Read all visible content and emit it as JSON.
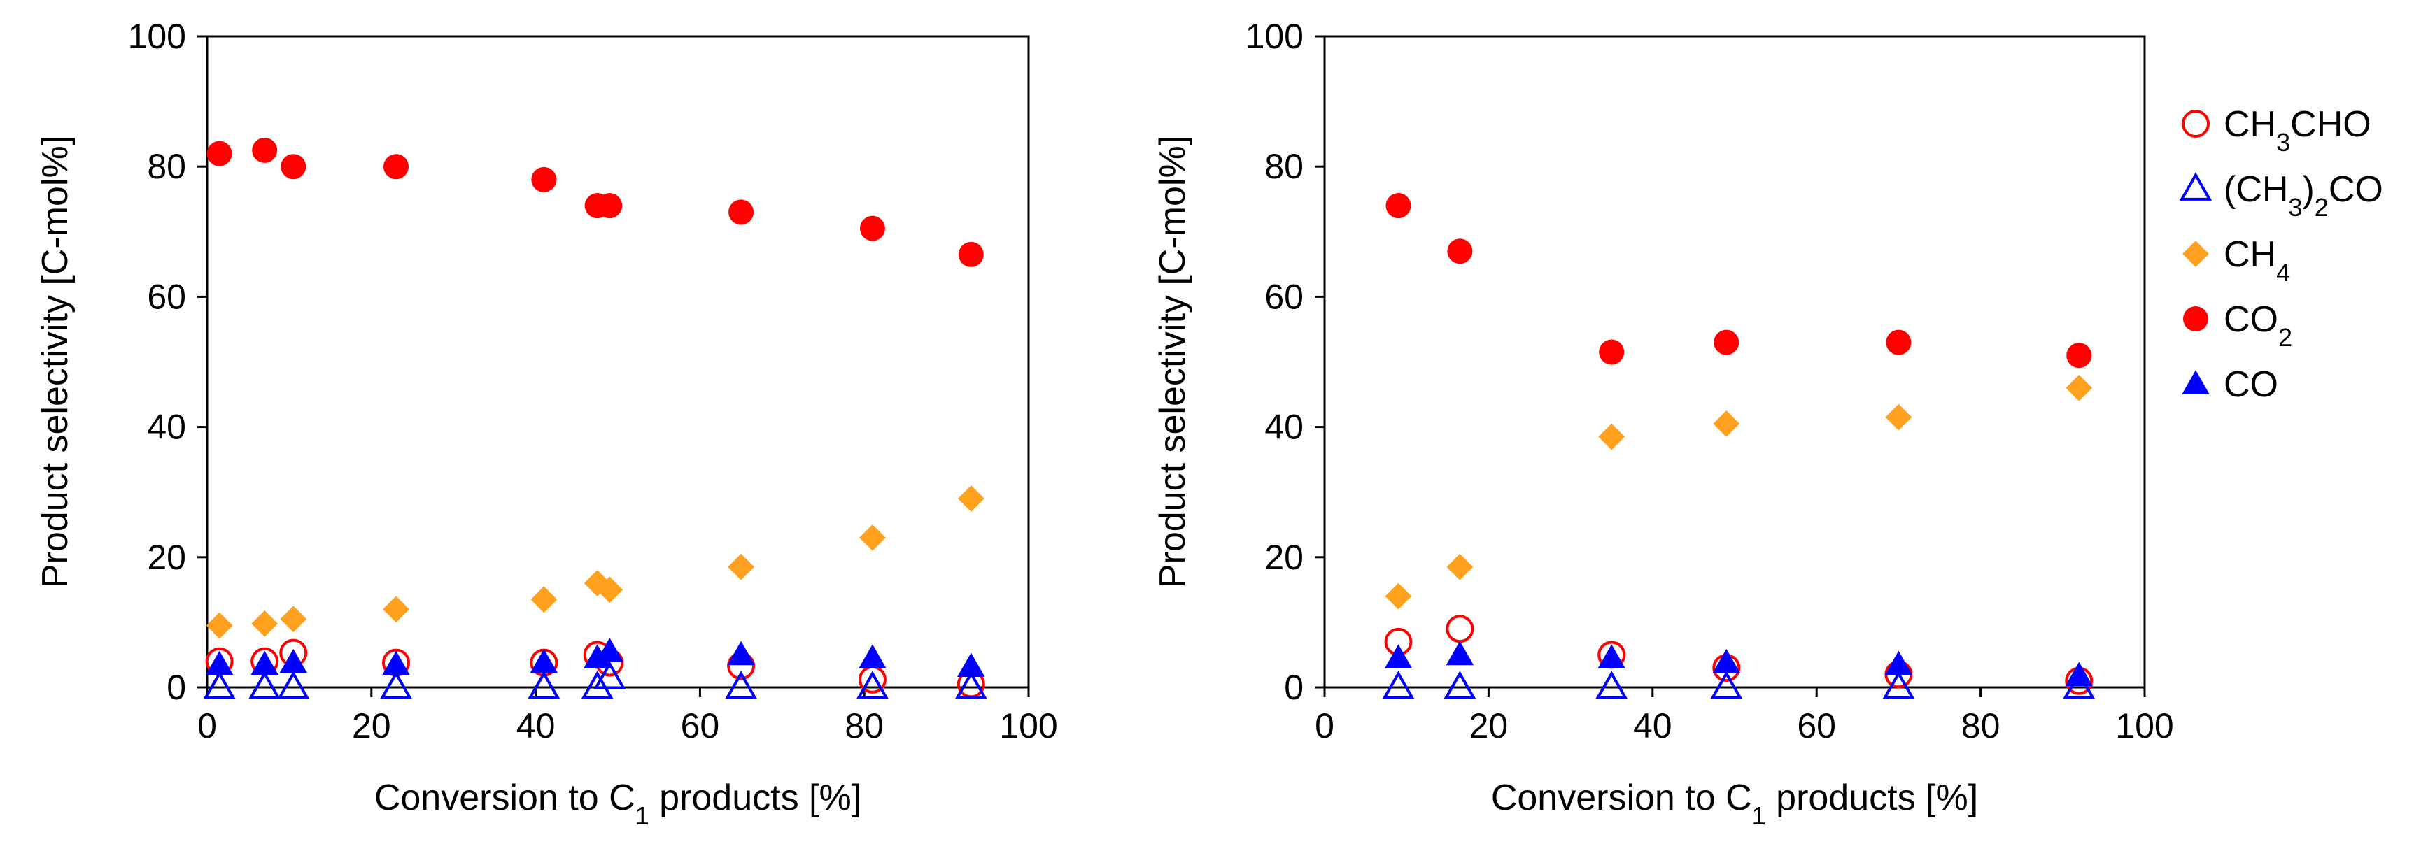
{
  "colors": {
    "red": "#ff0000",
    "blue": "#0000ff",
    "orange": "#ffa01e",
    "axis": "#000000"
  },
  "legend": [
    {
      "key": "CH3CHO",
      "parts": [
        {
          "t": "CH"
        },
        {
          "t": "3",
          "sub": true
        },
        {
          "t": "CHO"
        }
      ],
      "marker": "circle-open",
      "color": "red"
    },
    {
      "key": "(CH3)2CO",
      "parts": [
        {
          "t": "(CH"
        },
        {
          "t": "3",
          "sub": true
        },
        {
          "t": ")"
        },
        {
          "t": "2",
          "sub": true
        },
        {
          "t": "CO"
        }
      ],
      "marker": "triangle-open",
      "color": "blue"
    },
    {
      "key": "CH4",
      "parts": [
        {
          "t": "CH"
        },
        {
          "t": "4",
          "sub": true
        }
      ],
      "marker": "diamond",
      "color": "orange"
    },
    {
      "key": "CO2",
      "parts": [
        {
          "t": "CO"
        },
        {
          "t": "2",
          "sub": true
        }
      ],
      "marker": "circle",
      "color": "red"
    },
    {
      "key": "CO",
      "parts": [
        {
          "t": "CO"
        }
      ],
      "marker": "triangle",
      "color": "blue"
    }
  ],
  "chart_data": [
    {
      "type": "scatter",
      "title": "",
      "xlabel_parts": [
        {
          "t": "Conversion to C"
        },
        {
          "t": "1",
          "sub": true
        },
        {
          "t": " products [%]"
        }
      ],
      "ylabel": "Product selectivity [C-mol%]",
      "xlim": [
        0,
        100
      ],
      "ylim": [
        0,
        100
      ],
      "xticks": [
        0,
        20,
        40,
        60,
        80,
        100
      ],
      "yticks": [
        0,
        20,
        40,
        60,
        80,
        100
      ],
      "grid": false,
      "series": [
        {
          "name": "CH3CHO",
          "x": [
            1.5,
            7,
            10.5,
            23,
            41,
            47.5,
            49,
            65,
            81,
            93
          ],
          "y": [
            4,
            4,
            5.3,
            3.8,
            3.8,
            5,
            3.8,
            3.3,
            1.2,
            0.5
          ]
        },
        {
          "name": "(CH3)2CO",
          "x": [
            1.5,
            7,
            10.5,
            23,
            41,
            47.5,
            49,
            65,
            81,
            93
          ],
          "y": [
            0,
            0,
            0,
            0,
            0,
            0,
            1.5,
            0,
            0,
            0
          ]
        },
        {
          "name": "CH4",
          "x": [
            1.5,
            7,
            10.5,
            23,
            41,
            47.5,
            49,
            65,
            81,
            93
          ],
          "y": [
            9.5,
            9.8,
            10.5,
            12,
            13.5,
            16,
            15,
            18.5,
            23,
            29
          ]
        },
        {
          "name": "CO2",
          "x": [
            1.5,
            7,
            10.5,
            23,
            41,
            47.5,
            49,
            65,
            81,
            93
          ],
          "y": [
            82,
            82.5,
            80,
            80,
            78,
            74,
            74,
            73,
            70.5,
            66.5
          ]
        },
        {
          "name": "CO",
          "x": [
            1.5,
            7,
            10.5,
            23,
            41,
            47.5,
            49,
            65,
            81,
            93
          ],
          "y": [
            3.5,
            3.5,
            3.8,
            3.5,
            3.8,
            4.5,
            5.5,
            5,
            4.5,
            3.2
          ]
        }
      ]
    },
    {
      "type": "scatter",
      "title": "",
      "xlabel_parts": [
        {
          "t": "Conversion to C"
        },
        {
          "t": "1",
          "sub": true
        },
        {
          "t": " products [%]"
        }
      ],
      "ylabel": "Product selectivity [C-mol%]",
      "xlim": [
        0,
        100
      ],
      "ylim": [
        0,
        100
      ],
      "xticks": [
        0,
        20,
        40,
        60,
        80,
        100
      ],
      "yticks": [
        0,
        20,
        40,
        60,
        80,
        100
      ],
      "grid": false,
      "series": [
        {
          "name": "CH3CHO",
          "x": [
            9,
            16.5,
            35,
            49,
            70,
            92
          ],
          "y": [
            7,
            9,
            5,
            3,
            2,
            1
          ]
        },
        {
          "name": "(CH3)2CO",
          "x": [
            9,
            16.5,
            35,
            49,
            70,
            92
          ],
          "y": [
            0,
            0,
            0,
            0,
            0,
            0
          ]
        },
        {
          "name": "CH4",
          "x": [
            9,
            16.5,
            35,
            49,
            70,
            92
          ],
          "y": [
            14,
            18.5,
            38.5,
            40.5,
            41.5,
            46
          ]
        },
        {
          "name": "CO2",
          "x": [
            9,
            16.5,
            35,
            49,
            70,
            92
          ],
          "y": [
            74,
            67,
            51.5,
            53,
            53,
            51
          ]
        },
        {
          "name": "CO",
          "x": [
            9,
            16.5,
            35,
            49,
            70,
            92
          ],
          "y": [
            4.5,
            5,
            4.5,
            3.8,
            3.5,
            1.8
          ]
        }
      ]
    }
  ]
}
